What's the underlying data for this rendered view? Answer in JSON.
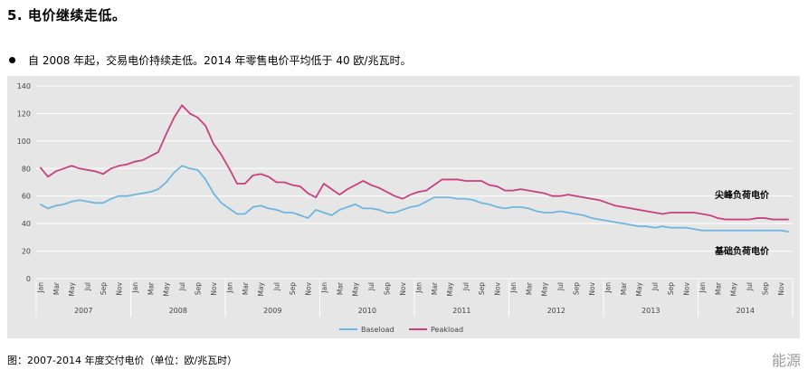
{
  "heading": "5. 电价继续走低。",
  "bullet_text": "自 2008 年起，交易电价持续走低。2014 年零售电价平均低于 40 欧/兆瓦时。",
  "caption": "图：2007-2014 年度交付电价（单位：欧/兆瓦时）",
  "watermark": "能源",
  "chart_data": {
    "type": "line",
    "title": "",
    "xlabel": "",
    "ylabel": "",
    "ylim": [
      0,
      140
    ],
    "yticks": [
      0,
      20,
      40,
      60,
      80,
      100,
      120,
      140
    ],
    "grid": true,
    "legend_position": "bottom",
    "x_month_labels": [
      "Jan",
      "Mar",
      "May",
      "Jul",
      "Sep",
      "Nov"
    ],
    "years": [
      "2007",
      "2008",
      "2009",
      "2010",
      "2011",
      "2012",
      "2013",
      "2014"
    ],
    "series": [
      {
        "name": "Baseload",
        "color": "#6fb6de",
        "values": [
          54,
          51,
          53,
          54,
          56,
          57,
          56,
          55,
          55,
          58,
          60,
          60,
          61,
          62,
          63,
          65,
          70,
          77,
          82,
          80,
          79,
          72,
          62,
          55,
          51,
          47,
          47,
          52,
          53,
          51,
          50,
          48,
          48,
          46,
          44,
          50,
          48,
          46,
          50,
          52,
          54,
          51,
          51,
          50,
          48,
          48,
          50,
          52,
          53,
          56,
          59,
          59,
          59,
          58,
          58,
          57,
          55,
          54,
          52,
          51,
          52,
          52,
          51,
          49,
          48,
          48,
          49,
          48,
          47,
          46,
          44,
          43,
          42,
          41,
          40,
          39,
          38,
          38,
          37,
          38,
          37,
          37,
          37,
          36,
          35,
          35,
          35,
          35,
          35,
          35,
          35,
          35,
          35,
          35,
          35,
          34
        ]
      },
      {
        "name": "Peakload",
        "color": "#c8407f",
        "values": [
          81,
          74,
          78,
          80,
          82,
          80,
          79,
          78,
          76,
          80,
          82,
          83,
          85,
          86,
          89,
          92,
          105,
          117,
          126,
          120,
          117,
          111,
          98,
          90,
          80,
          69,
          69,
          75,
          76,
          74,
          70,
          70,
          68,
          67,
          62,
          59,
          69,
          65,
          61,
          65,
          68,
          71,
          68,
          66,
          63,
          60,
          58,
          61,
          63,
          64,
          68,
          72,
          72,
          72,
          71,
          71,
          71,
          68,
          67,
          64,
          64,
          65,
          64,
          63,
          62,
          60,
          60,
          61,
          60,
          59,
          58,
          57,
          55,
          53,
          52,
          51,
          50,
          49,
          48,
          47,
          48,
          48,
          48,
          48,
          47,
          46,
          44,
          43,
          43,
          43,
          43,
          44,
          44,
          43,
          43,
          43
        ]
      }
    ],
    "annotations": [
      {
        "text": "尖峰负荷电价",
        "series": "Peakload"
      },
      {
        "text": "基础负荷电价",
        "series": "Baseload"
      }
    ]
  }
}
